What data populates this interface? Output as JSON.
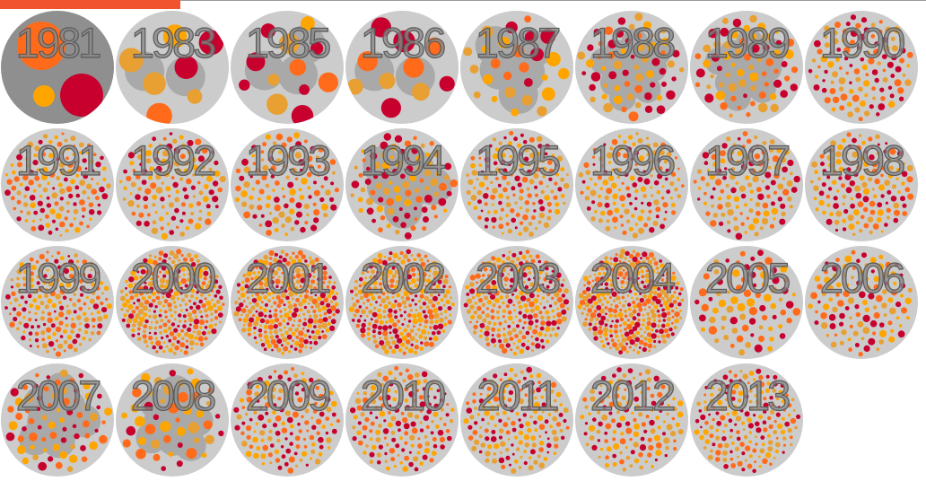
{
  "progress": {
    "fraction": 0.195
  },
  "colors": {
    "track": "#cccccc",
    "active_background": "#8f8f8f",
    "group": "#a9a9a9",
    "bubble_palette": [
      "#ff6b1a",
      "#c8002e",
      "#ffa500",
      "#e8a032"
    ],
    "progress_bar": "#f0532d"
  },
  "chart_data": {
    "type": "packed-bubble small multiples",
    "active_year": "1981",
    "panels": [
      {
        "year": "1981",
        "count": 3,
        "groups": 1
      },
      {
        "year": "1983",
        "count": 7,
        "groups": 2
      },
      {
        "year": "1985",
        "count": 12,
        "groups": 3
      },
      {
        "year": "1986",
        "count": 10,
        "groups": 2
      },
      {
        "year": "1987",
        "count": 26,
        "groups": 5
      },
      {
        "year": "1988",
        "count": 60,
        "groups": 12
      },
      {
        "year": "1989",
        "count": 65,
        "groups": 12
      },
      {
        "year": "1990",
        "count": 110,
        "groups": 0
      },
      {
        "year": "1991",
        "count": 150,
        "groups": 0
      },
      {
        "year": "1992",
        "count": 130,
        "groups": 0
      },
      {
        "year": "1993",
        "count": 120,
        "groups": 0
      },
      {
        "year": "1994",
        "count": 90,
        "groups": 6
      },
      {
        "year": "1995",
        "count": 160,
        "groups": 0
      },
      {
        "year": "1996",
        "count": 150,
        "groups": 0
      },
      {
        "year": "1997",
        "count": 130,
        "groups": 0
      },
      {
        "year": "1998",
        "count": 140,
        "groups": 0
      },
      {
        "year": "1999",
        "count": 200,
        "groups": 0
      },
      {
        "year": "2000",
        "count": 300,
        "groups": 0
      },
      {
        "year": "2001",
        "count": 320,
        "groups": 0
      },
      {
        "year": "2002",
        "count": 300,
        "groups": 0
      },
      {
        "year": "2003",
        "count": 260,
        "groups": 0
      },
      {
        "year": "2004",
        "count": 340,
        "groups": 0
      },
      {
        "year": "2005",
        "count": 80,
        "groups": 0
      },
      {
        "year": "2006",
        "count": 110,
        "groups": 0
      },
      {
        "year": "2007",
        "count": 70,
        "groups": 8
      },
      {
        "year": "2008",
        "count": 45,
        "groups": 9
      },
      {
        "year": "2009",
        "count": 150,
        "groups": 0
      },
      {
        "year": "2010",
        "count": 160,
        "groups": 0
      },
      {
        "year": "2011",
        "count": 170,
        "groups": 0
      },
      {
        "year": "2012",
        "count": 140,
        "groups": 0
      },
      {
        "year": "2013",
        "count": 180,
        "groups": 0
      }
    ]
  }
}
